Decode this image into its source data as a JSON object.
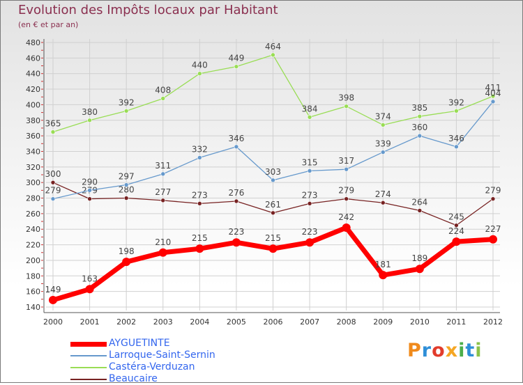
{
  "title": "Evolution des Impôts locaux par Habitant",
  "subtitle": "(en € et par an)",
  "logo_text": "Proxiti",
  "chart_data": {
    "type": "line",
    "title": "Evolution des Impôts locaux par Habitant",
    "ylabel": "(en € et par an)",
    "xlabel": "",
    "x": [
      "2000",
      "2001",
      "2002",
      "2003",
      "2004",
      "2005",
      "2006",
      "2007",
      "2008",
      "2009",
      "2010",
      "2011",
      "2012"
    ],
    "ylim": [
      140,
      480
    ],
    "yticks": [
      140,
      160,
      180,
      200,
      220,
      240,
      260,
      280,
      300,
      320,
      340,
      360,
      380,
      400,
      420,
      440,
      460,
      480
    ],
    "legend_position": "bottom-left",
    "series": [
      {
        "name": "AYGUETINTE",
        "color": "#ff0000",
        "values": [
          149,
          163,
          198,
          210,
          215,
          223,
          215,
          223,
          242,
          181,
          189,
          224,
          227
        ]
      },
      {
        "name": "Larroque-Saint-Sernin",
        "color": "#6699cc",
        "values": [
          279,
          290,
          297,
          311,
          332,
          346,
          303,
          315,
          317,
          339,
          360,
          346,
          404
        ]
      },
      {
        "name": "Castéra-Verduzan",
        "color": "#99dd55",
        "values": [
          365,
          380,
          392,
          408,
          440,
          449,
          464,
          384,
          398,
          374,
          385,
          392,
          411
        ]
      },
      {
        "name": "Beaucaire",
        "color": "#772222",
        "values": [
          300,
          279,
          280,
          277,
          273,
          276,
          261,
          273,
          279,
          274,
          264,
          245,
          279
        ]
      }
    ]
  }
}
